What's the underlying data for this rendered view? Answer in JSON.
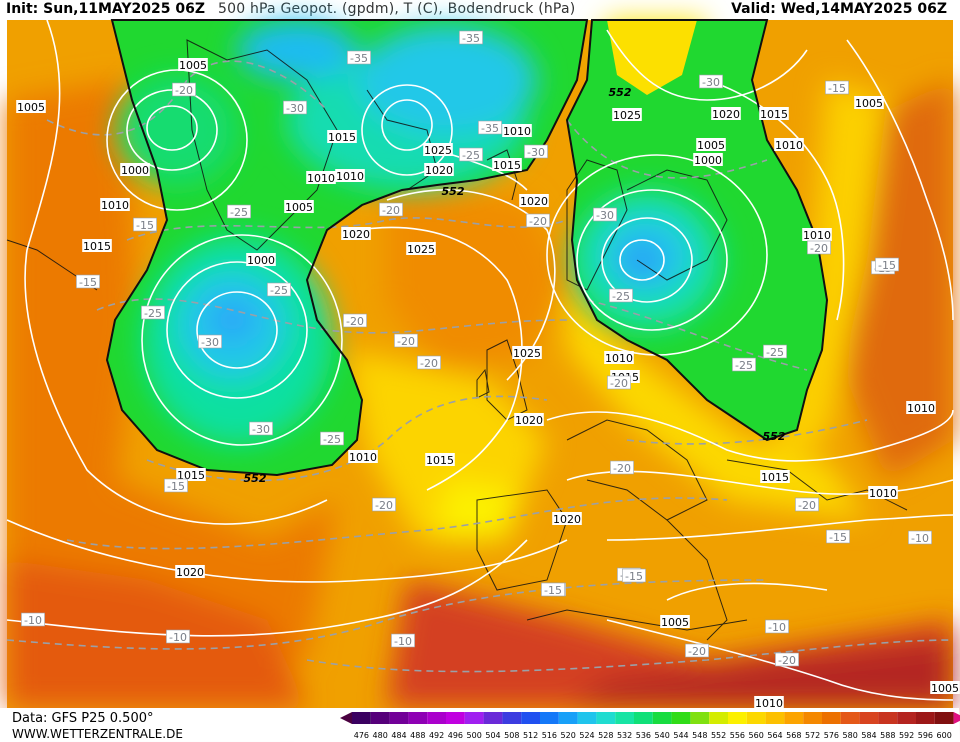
{
  "header": {
    "init": "Init: Sun,11MAY2025 06Z",
    "title": "500 hPa Geopot. (gpdm), T (C), Bodendruck (hPa)",
    "valid": "Valid: Wed,14MAY2025 06Z"
  },
  "footer": {
    "source": "Data: GFS P25 0.500°",
    "website": "WWW.WETTERZENTRALE.DE"
  },
  "legend": {
    "values": [
      "476",
      "480",
      "484",
      "488",
      "492",
      "496",
      "500",
      "504",
      "508",
      "512",
      "516",
      "520",
      "524",
      "528",
      "532",
      "536",
      "540",
      "544",
      "548",
      "552",
      "556",
      "560",
      "564",
      "568",
      "572",
      "576",
      "580",
      "584",
      "588",
      "592",
      "596",
      "600"
    ],
    "colors": [
      "#3a0060",
      "#56007a",
      "#720098",
      "#8e00b4",
      "#aa00cc",
      "#c000e0",
      "#a020f0",
      "#6a2ad8",
      "#3c3ce0",
      "#2050f0",
      "#1478f8",
      "#18a0f8",
      "#20c4ec",
      "#20dcd0",
      "#18e4a4",
      "#10e078",
      "#18dc40",
      "#30dc18",
      "#80e010",
      "#d4ec00",
      "#fcf000",
      "#fcd800",
      "#fcc000",
      "#fca400",
      "#f48800",
      "#ec7000",
      "#e45818",
      "#d84420",
      "#c83420",
      "#b42420",
      "#9c1818",
      "#801010"
    ],
    "arrow_left": "#4a0040",
    "arrow_right": "#e01080"
  },
  "map": {
    "isobar_labels": [
      {
        "text": "1005"
      },
      {
        "text": "1005"
      },
      {
        "text": "1000"
      },
      {
        "text": "1010"
      },
      {
        "text": "1015"
      },
      {
        "text": "1015"
      },
      {
        "text": "1010"
      },
      {
        "text": "1010"
      },
      {
        "text": "1005"
      },
      {
        "text": "1000"
      },
      {
        "text": "1020"
      },
      {
        "text": "1025"
      },
      {
        "text": "1020"
      },
      {
        "text": "1025"
      },
      {
        "text": "1010"
      },
      {
        "text": "1015"
      },
      {
        "text": "1020"
      },
      {
        "text": "1025"
      },
      {
        "text": "1020"
      },
      {
        "text": "1005"
      },
      {
        "text": "1000"
      },
      {
        "text": "1015"
      },
      {
        "text": "1010"
      },
      {
        "text": "1005"
      },
      {
        "text": "1010"
      },
      {
        "text": "1025"
      },
      {
        "text": "1010"
      },
      {
        "text": "1015"
      },
      {
        "text": "1020"
      },
      {
        "text": "1015"
      },
      {
        "text": "1010"
      },
      {
        "text": "1015"
      },
      {
        "text": "1010"
      },
      {
        "text": "1015"
      },
      {
        "text": "1020"
      },
      {
        "text": "1020"
      },
      {
        "text": "1005"
      },
      {
        "text": "1010"
      },
      {
        "text": "1010"
      },
      {
        "text": "1005"
      }
    ],
    "temp_labels": [
      {
        "text": "-20"
      },
      {
        "text": "-35"
      },
      {
        "text": "-35"
      },
      {
        "text": "-30"
      },
      {
        "text": "-35"
      },
      {
        "text": "-25"
      },
      {
        "text": "-30"
      },
      {
        "text": "-20"
      },
      {
        "text": "-30"
      },
      {
        "text": "-30"
      },
      {
        "text": "-15"
      },
      {
        "text": "-25"
      },
      {
        "text": "-20"
      },
      {
        "text": "-15"
      },
      {
        "text": "-15"
      },
      {
        "text": "-25"
      },
      {
        "text": "-25"
      },
      {
        "text": "-30"
      },
      {
        "text": "-20"
      },
      {
        "text": "-20"
      },
      {
        "text": "-20"
      },
      {
        "text": "-20"
      },
      {
        "text": "-20"
      },
      {
        "text": "-25"
      },
      {
        "text": "-20"
      },
      {
        "text": "-30"
      },
      {
        "text": "-25"
      },
      {
        "text": "-20"
      },
      {
        "text": "-15"
      },
      {
        "text": "-15"
      },
      {
        "text": "-15"
      },
      {
        "text": "-15"
      },
      {
        "text": "-20"
      },
      {
        "text": "-20"
      },
      {
        "text": "-15"
      },
      {
        "text": "-20"
      },
      {
        "text": "-20"
      },
      {
        "text": "-15"
      },
      {
        "text": "-10"
      },
      {
        "text": "-10"
      },
      {
        "text": "-10"
      },
      {
        "text": "-10"
      },
      {
        "text": "-10"
      },
      {
        "text": "-25"
      },
      {
        "text": "-25"
      },
      {
        "text": "-15"
      }
    ],
    "geopot_labels": [
      {
        "text": "552"
      },
      {
        "text": "552"
      },
      {
        "text": "552"
      },
      {
        "text": "552"
      }
    ]
  }
}
